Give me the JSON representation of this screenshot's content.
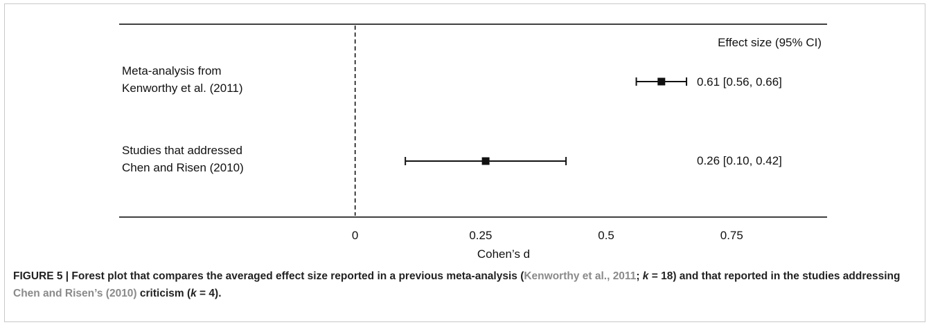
{
  "chart_data": {
    "type": "forest",
    "xlabel": "Cohen’s d",
    "xlim": [
      -0.47,
      0.94
    ],
    "xticks": [
      {
        "value": 0,
        "label": "0"
      },
      {
        "value": 0.25,
        "label": "0.25"
      },
      {
        "value": 0.5,
        "label": "0.5"
      },
      {
        "value": 0.75,
        "label": "0.75"
      }
    ],
    "reference_line": 0,
    "column_header": "Effect size (95% CI)",
    "rows": [
      {
        "label_lines": [
          "Meta-analysis from",
          "Kenworthy et al. (2011)"
        ],
        "estimate": 0.61,
        "ci_low": 0.56,
        "ci_high": 0.66,
        "ci_text": "0.61 [0.56, 0.66]"
      },
      {
        "label_lines": [
          "Studies that addressed",
          "Chen and Risen (2010)"
        ],
        "estimate": 0.26,
        "ci_low": 0.1,
        "ci_high": 0.42,
        "ci_text": "0.26 [0.10, 0.42]"
      }
    ]
  },
  "caption": {
    "prefix": "FIGURE 5 | Forest plot that compares the averaged effect size reported in a previous meta-analysis (",
    "ref1": "Kenworthy et al., 2011",
    "sep1": "; ",
    "k1_var": "k",
    "k1_rest": " = 18) and that reported in the studies addressing ",
    "ref2": "Chen and Risen’s (2010)",
    "mid": " criticism (",
    "k2_var": "k",
    "k2_rest": " = 4)."
  }
}
